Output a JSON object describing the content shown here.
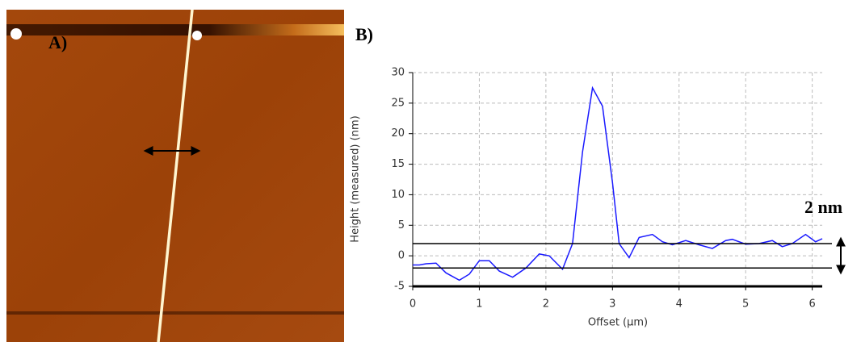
{
  "chart_data": {
    "type": "line",
    "xlabel": "Offset (µm)",
    "ylabel": "Height (measured) (nm)",
    "annotations": [
      "A)",
      "B)",
      "2 nm"
    ],
    "x": [
      0,
      0.1,
      0.2,
      0.35,
      0.5,
      0.7,
      0.85,
      1.0,
      1.15,
      1.3,
      1.5,
      1.7,
      1.9,
      2.05,
      2.25,
      2.4,
      2.55,
      2.7,
      2.85,
      3.0,
      3.1,
      3.25,
      3.4,
      3.6,
      3.75,
      3.9,
      4.1,
      4.3,
      4.5,
      4.7,
      4.8,
      5.0,
      5.2,
      5.4,
      5.55,
      5.7,
      5.9,
      6.05,
      6.15
    ],
    "series": [
      {
        "color": "#1a1aff",
        "values": [
          -1.5,
          -1.5,
          -1.3,
          -1.2,
          -2.8,
          -4,
          -3,
          -0.8,
          -0.8,
          -2.5,
          -3.5,
          -2,
          0.3,
          0,
          -2.2,
          2,
          17,
          27.5,
          24.5,
          12,
          2,
          -0.3,
          3,
          3.5,
          2.3,
          1.8,
          2.5,
          1.8,
          1.2,
          2.5,
          2.7,
          1.9,
          2,
          2.5,
          1.5,
          2,
          3.5,
          2.3,
          2.8
        ]
      }
    ],
    "hlines": [
      2,
      -2
    ],
    "xlim": [
      0,
      6.15
    ],
    "ylim": [
      -5,
      30
    ],
    "xticks": [
      0,
      1,
      2,
      3,
      4,
      5,
      6
    ],
    "yticks": [
      -5,
      0,
      5,
      10,
      15,
      20,
      25,
      30
    ],
    "grid": true
  }
}
